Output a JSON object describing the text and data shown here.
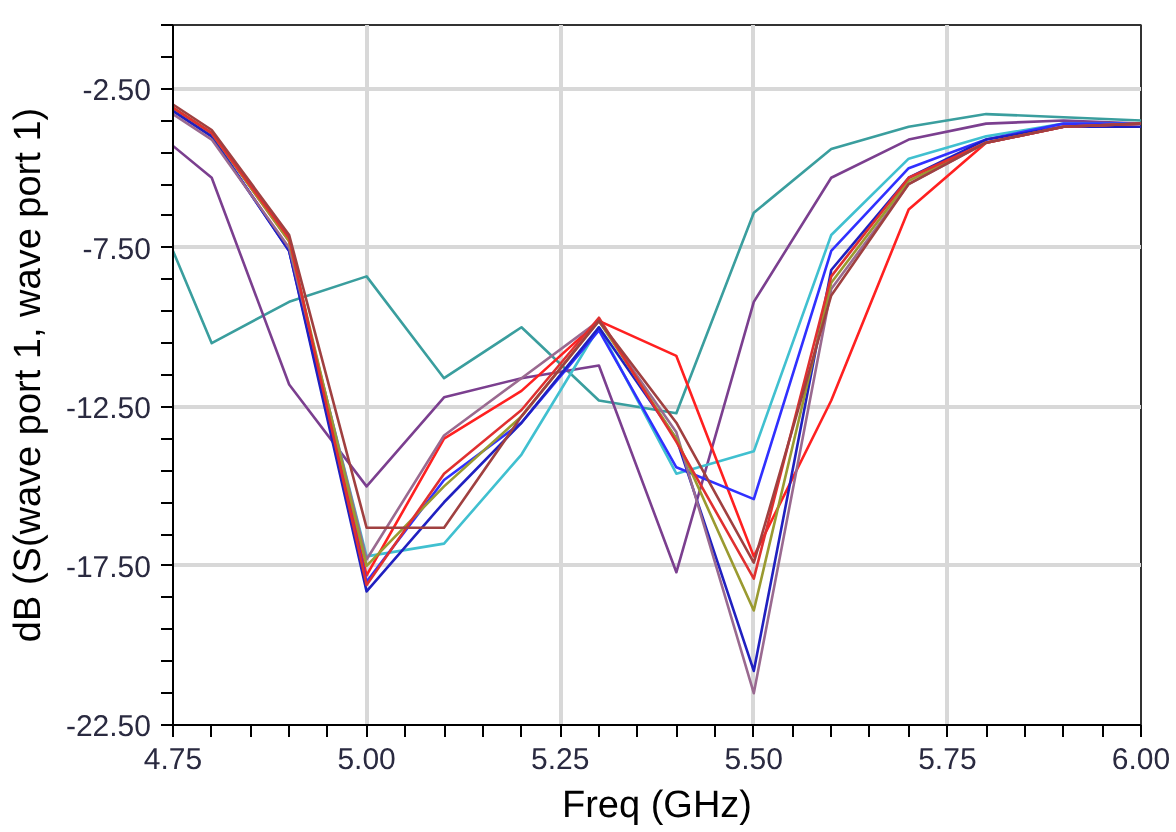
{
  "chart_data": {
    "type": "line",
    "xlabel": "Freq (GHz)",
    "ylabel": "dB (S(wave port 1, wave port 1)",
    "x": [
      4.75,
      4.8,
      4.9,
      5.0,
      5.1,
      5.2,
      5.3,
      5.4,
      5.5,
      5.6,
      5.7,
      5.8,
      5.9,
      6.0
    ],
    "xlim": [
      4.75,
      6.0
    ],
    "ylim": [
      -22.5,
      -0.5
    ],
    "xticks": [
      4.75,
      {
        "value": 4.8,
        "label": null
      },
      {
        "value": 4.85,
        "label": null
      },
      {
        "value": 4.9,
        "label": null
      },
      {
        "value": 4.95,
        "label": null
      },
      {
        "value": 5.0,
        "label": "5.00"
      },
      {
        "value": 5.05,
        "label": null
      },
      {
        "value": 5.1,
        "label": null
      },
      {
        "value": 5.15,
        "label": null
      },
      {
        "value": 5.2,
        "label": null
      },
      5.25,
      {
        "value": 5.3,
        "label": null
      },
      {
        "value": 5.35,
        "label": null
      },
      {
        "value": 5.4,
        "label": null
      },
      {
        "value": 5.45,
        "label": null
      },
      {
        "value": 5.5,
        "label": "5.50"
      },
      {
        "value": 5.55,
        "label": null
      },
      {
        "value": 5.6,
        "label": null
      },
      {
        "value": 5.65,
        "label": null
      },
      {
        "value": 5.7,
        "label": null
      },
      5.75,
      {
        "value": 5.8,
        "label": null
      },
      {
        "value": 5.85,
        "label": null
      },
      {
        "value": 5.9,
        "label": null
      },
      {
        "value": 5.95,
        "label": null
      },
      {
        "value": 6.0,
        "label": "6.00"
      }
    ],
    "yticks": [
      {
        "value": -22.5,
        "label": "-22.50"
      },
      {
        "value": -21.5,
        "label": null
      },
      {
        "value": -20.5,
        "label": null
      },
      {
        "value": -19.5,
        "label": null
      },
      {
        "value": -18.5,
        "label": null
      },
      {
        "value": -17.5,
        "label": "-17.50"
      },
      {
        "value": -16.5,
        "label": null
      },
      {
        "value": -15.5,
        "label": null
      },
      {
        "value": -14.5,
        "label": null
      },
      {
        "value": -13.5,
        "label": null
      },
      {
        "value": -12.5,
        "label": "-12.50"
      },
      {
        "value": -11.5,
        "label": null
      },
      {
        "value": -10.5,
        "label": null
      },
      {
        "value": -9.5,
        "label": null
      },
      {
        "value": -8.5,
        "label": null
      },
      {
        "value": -7.5,
        "label": "-7.50"
      },
      {
        "value": -6.5,
        "label": null
      },
      {
        "value": -5.5,
        "label": null
      },
      {
        "value": -4.5,
        "label": null
      },
      {
        "value": -3.5,
        "label": null
      },
      {
        "value": -2.5,
        "label": "-2.50"
      },
      {
        "value": -1.5,
        "label": null
      },
      {
        "value": -0.5,
        "label": null
      }
    ],
    "grid": true,
    "marker": "none",
    "line_style": "solid",
    "series": [
      {
        "color": "#3a9e9e",
        "values": [
          -7.6,
          -10.5,
          -9.2,
          -8.4,
          -11.6,
          -10.0,
          -12.3,
          -12.7,
          -6.4,
          -4.4,
          -3.7,
          -3.3,
          -3.4,
          -3.5
        ]
      },
      {
        "color": "#7b3f8f",
        "values": [
          -4.3,
          -5.3,
          -11.8,
          -15.0,
          -12.2,
          -11.6,
          -11.2,
          -17.7,
          -9.2,
          -5.3,
          -4.1,
          -3.6,
          -3.5,
          -3.6
        ]
      },
      {
        "color": "#40c0d0",
        "values": [
          null,
          null,
          -7.6,
          -17.2,
          -16.8,
          -14.0,
          -10.0,
          -14.6,
          -13.9,
          -7.1,
          -4.7,
          -4.0,
          -3.6,
          -3.6
        ]
      },
      {
        "color": "#ff2020",
        "values": [
          -3.1,
          -3.9,
          -7.3,
          -17.8,
          -13.5,
          -12.0,
          -9.8,
          -10.9,
          -17.2,
          -12.3,
          -6.3,
          -4.2,
          -3.7,
          -3.6
        ]
      },
      {
        "color": "#3030ff",
        "values": [
          -3.2,
          -4.0,
          -7.6,
          -18.0,
          -14.8,
          -13.0,
          -10.1,
          -14.4,
          -15.4,
          -7.6,
          -5.0,
          -4.1,
          -3.6,
          -3.6
        ]
      },
      {
        "color": "#2020c0",
        "values": [
          -3.2,
          -4.0,
          -7.6,
          -18.3,
          -15.5,
          -13.0,
          -10.0,
          -13.5,
          -20.8,
          -8.2,
          -5.3,
          -4.1,
          -3.7,
          -3.7
        ]
      },
      {
        "color": "#9a6a90",
        "values": [
          -3.3,
          -4.1,
          -7.5,
          -17.3,
          -13.4,
          -11.6,
          -9.8,
          -13.3,
          -21.5,
          -8.8,
          -5.5,
          -4.2,
          -3.7,
          -3.6
        ]
      },
      {
        "color": "#9a9a30",
        "values": [
          -3.1,
          -3.9,
          -7.3,
          -17.5,
          -15.0,
          -12.8,
          -9.8,
          -13.5,
          -18.9,
          -8.6,
          -5.4,
          -4.2,
          null,
          null
        ]
      },
      {
        "color": "#e03030",
        "values": [
          -3.1,
          -3.9,
          -7.2,
          -18.1,
          -14.6,
          -12.6,
          -9.7,
          -13.6,
          -17.9,
          -8.4,
          -5.3,
          -4.2,
          -3.7,
          -3.6
        ]
      },
      {
        "color": "#a04040",
        "values": [
          -3.0,
          -3.8,
          -7.1,
          -16.3,
          -16.3,
          -12.8,
          -9.8,
          -13.0,
          -17.4,
          -9.0,
          -5.5,
          -4.2,
          -3.7,
          -3.6
        ]
      }
    ]
  }
}
